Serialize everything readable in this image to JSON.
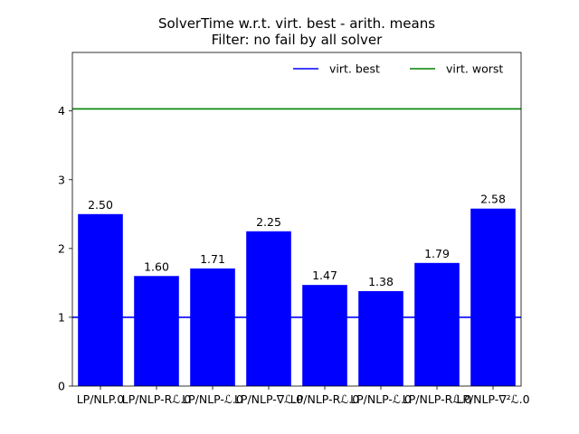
{
  "chart_data": {
    "type": "bar",
    "title": "SolverTime w.r.t. virt. best - arith. means",
    "subtitle": "Filter: no fail by all solver",
    "xlabel": "",
    "ylabel": "",
    "categories": [
      "LP/NLP.0",
      "LP/NLP-Rℒ.0",
      "LP/NLP-ℒ.0",
      "LP/NLP-∇ℒ.0",
      "LP/NLP-Rℒ.0",
      "LP/NLP-ℒ.0",
      "LP/NLP-Rℒ.0",
      "LP/NLP-∇²ℒ.0"
    ],
    "values": [
      2.5,
      1.6,
      1.71,
      2.25,
      1.47,
      1.38,
      1.79,
      2.58
    ],
    "value_labels": [
      "2.50",
      "1.60",
      "1.71",
      "2.25",
      "1.47",
      "1.38",
      "1.79",
      "2.58"
    ],
    "bar_color": "#0000ff",
    "ylim": [
      0,
      4.85
    ],
    "yticks": [
      0,
      1,
      2,
      3,
      4
    ],
    "reference_lines": [
      {
        "name": "virt. best",
        "value": 1.0,
        "color": "#0000ff"
      },
      {
        "name": "virt. worst",
        "value": 4.03,
        "color": "#008000"
      }
    ],
    "legend": {
      "placement": "top-right"
    },
    "grid": false
  }
}
